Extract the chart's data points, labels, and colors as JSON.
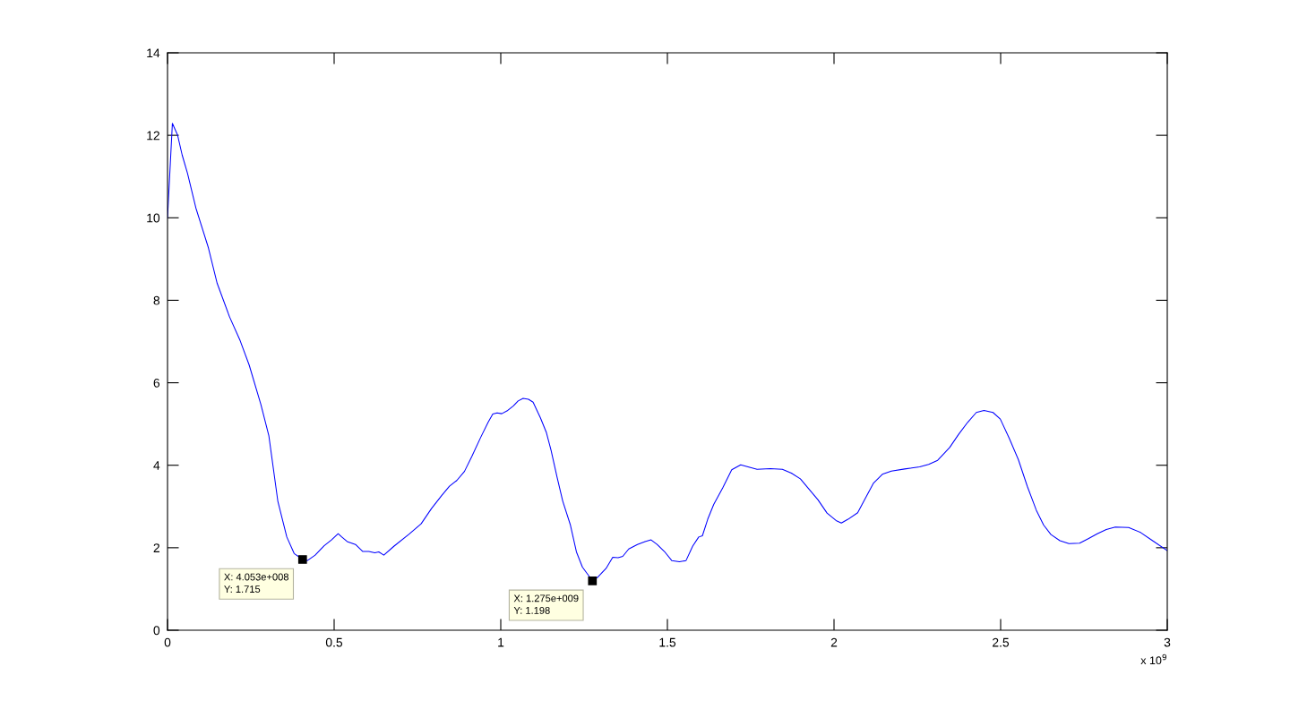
{
  "chart_data": {
    "type": "line",
    "x": [
      0,
      0.0146,
      0.03,
      0.044,
      0.06,
      0.085,
      0.122,
      0.149,
      0.186,
      0.218,
      0.245,
      0.28,
      0.304,
      0.331,
      0.358,
      0.38,
      0.405,
      0.42,
      0.443,
      0.47,
      0.492,
      0.512,
      0.523,
      0.539,
      0.564,
      0.586,
      0.604,
      0.622,
      0.634,
      0.649,
      0.68,
      0.725,
      0.761,
      0.792,
      0.823,
      0.846,
      0.868,
      0.891,
      0.913,
      0.94,
      0.962,
      0.976,
      0.989,
      1.003,
      1.021,
      1.038,
      1.052,
      1.067,
      1.083,
      1.097,
      1.119,
      1.137,
      1.151,
      1.169,
      1.186,
      1.209,
      1.227,
      1.245,
      1.275,
      1.29,
      1.316,
      1.336,
      1.352,
      1.366,
      1.384,
      1.41,
      1.433,
      1.451,
      1.469,
      1.491,
      1.513,
      1.536,
      1.556,
      1.576,
      1.594,
      1.605,
      1.621,
      1.639,
      1.666,
      1.693,
      1.72,
      1.742,
      1.769,
      1.809,
      1.845,
      1.872,
      1.899,
      1.926,
      1.952,
      1.979,
      2.006,
      2.022,
      2.042,
      2.071,
      2.096,
      2.118,
      2.145,
      2.172,
      2.212,
      2.257,
      2.284,
      2.311,
      2.347,
      2.374,
      2.401,
      2.427,
      2.45,
      2.477,
      2.499,
      2.526,
      2.553,
      2.58,
      2.607,
      2.629,
      2.651,
      2.678,
      2.705,
      2.737,
      2.763,
      2.79,
      2.817,
      2.844,
      2.884,
      2.92,
      2.956,
      3.0
    ],
    "series": [
      {
        "color": "#0000ff",
        "values": [
          10.0,
          12.29,
          12.01,
          11.52,
          11.08,
          10.24,
          9.29,
          8.41,
          7.6,
          7.02,
          6.43,
          5.48,
          4.72,
          3.13,
          2.26,
          1.86,
          1.72,
          1.69,
          1.82,
          2.05,
          2.19,
          2.34,
          2.26,
          2.15,
          2.08,
          1.91,
          1.91,
          1.88,
          1.9,
          1.82,
          2.04,
          2.33,
          2.58,
          2.95,
          3.27,
          3.49,
          3.63,
          3.85,
          4.21,
          4.68,
          5.04,
          5.24,
          5.27,
          5.25,
          5.33,
          5.44,
          5.56,
          5.62,
          5.6,
          5.53,
          5.15,
          4.79,
          4.36,
          3.71,
          3.13,
          2.55,
          1.9,
          1.53,
          1.2,
          1.28,
          1.5,
          1.77,
          1.76,
          1.79,
          1.97,
          2.08,
          2.15,
          2.19,
          2.08,
          1.91,
          1.69,
          1.66,
          1.69,
          2.04,
          2.26,
          2.29,
          2.69,
          3.05,
          3.45,
          3.89,
          4.01,
          3.96,
          3.9,
          3.92,
          3.9,
          3.81,
          3.67,
          3.41,
          3.16,
          2.84,
          2.66,
          2.6,
          2.69,
          2.85,
          3.23,
          3.56,
          3.78,
          3.86,
          3.91,
          3.96,
          4.02,
          4.12,
          4.43,
          4.75,
          5.04,
          5.28,
          5.33,
          5.28,
          5.12,
          4.65,
          4.14,
          3.49,
          2.91,
          2.55,
          2.32,
          2.17,
          2.1,
          2.11,
          2.22,
          2.34,
          2.44,
          2.5,
          2.49,
          2.37,
          2.17,
          1.93
        ]
      }
    ],
    "xlim": [
      0,
      3
    ],
    "xticks": [
      0,
      0.5,
      1,
      1.5,
      2,
      2.5,
      3
    ],
    "ylim": [
      0,
      14
    ],
    "yticks": [
      0,
      2,
      4,
      6,
      8,
      10,
      12,
      14
    ],
    "annotations": [
      {
        "text": "X: 4.053e+008\nY: 1.715",
        "x": 0.4053,
        "y": 1.715
      },
      {
        "text": "X: 1.275e+009\nY: 1.198",
        "x": 1.275,
        "y": 1.198
      },
      "x 10$^{9}$"
    ]
  }
}
